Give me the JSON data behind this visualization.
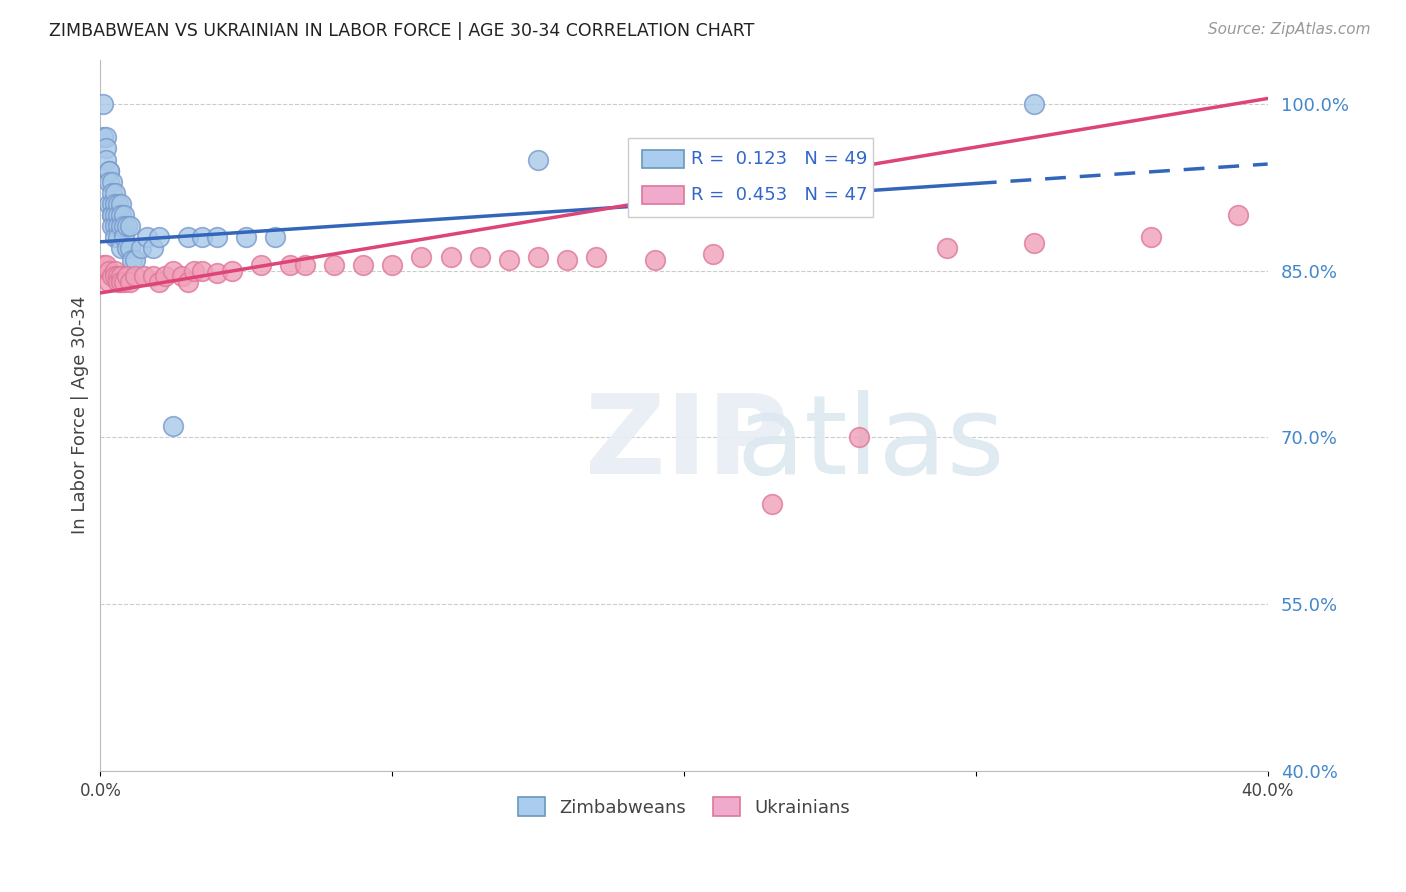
{
  "title": "ZIMBABWEAN VS UKRAINIAN IN LABOR FORCE | AGE 30-34 CORRELATION CHART",
  "source": "Source: ZipAtlas.com",
  "ylabel": "In Labor Force | Age 30-34",
  "xlim": [
    0.0,
    0.4
  ],
  "ylim": [
    0.4,
    1.04
  ],
  "yticks": [
    0.4,
    0.55,
    0.7,
    0.85,
    1.0
  ],
  "ytick_labels": [
    "40.0%",
    "55.0%",
    "70.0%",
    "85.0%",
    "100.0%"
  ],
  "xticks": [
    0.0,
    0.1,
    0.2,
    0.3,
    0.4
  ],
  "xtick_labels": [
    "0.0%",
    "",
    "",
    "",
    "40.0%"
  ],
  "legend_R_blue": "R =  0.123",
  "legend_N_blue": "N = 49",
  "legend_R_pink": "R =  0.453",
  "legend_N_pink": "N = 47",
  "blue_scatter_color": "#A8C8E8",
  "blue_edge_color": "#7799CC",
  "pink_scatter_color": "#F0A0B8",
  "pink_edge_color": "#DD7799",
  "blue_line_color": "#3366BB",
  "pink_line_color": "#DD4477",
  "grid_color": "#CCCCCC",
  "zim_x": [
    0.001,
    0.001,
    0.002,
    0.002,
    0.002,
    0.003,
    0.003,
    0.003,
    0.003,
    0.004,
    0.004,
    0.004,
    0.004,
    0.004,
    0.004,
    0.005,
    0.005,
    0.005,
    0.005,
    0.005,
    0.006,
    0.006,
    0.006,
    0.006,
    0.007,
    0.007,
    0.007,
    0.007,
    0.008,
    0.008,
    0.008,
    0.009,
    0.009,
    0.01,
    0.01,
    0.011,
    0.012,
    0.014,
    0.016,
    0.018,
    0.02,
    0.025,
    0.03,
    0.035,
    0.04,
    0.05,
    0.06,
    0.15,
    0.32
  ],
  "zim_y": [
    1.0,
    0.97,
    0.97,
    0.96,
    0.95,
    0.94,
    0.94,
    0.93,
    0.91,
    0.93,
    0.92,
    0.91,
    0.9,
    0.9,
    0.89,
    0.92,
    0.91,
    0.9,
    0.89,
    0.88,
    0.91,
    0.9,
    0.89,
    0.88,
    0.91,
    0.9,
    0.89,
    0.87,
    0.9,
    0.89,
    0.88,
    0.89,
    0.87,
    0.89,
    0.87,
    0.86,
    0.86,
    0.87,
    0.88,
    0.87,
    0.88,
    0.71,
    0.88,
    0.88,
    0.88,
    0.88,
    0.88,
    0.95,
    1.0
  ],
  "ukr_x": [
    0.001,
    0.002,
    0.003,
    0.003,
    0.004,
    0.005,
    0.005,
    0.006,
    0.006,
    0.007,
    0.007,
    0.008,
    0.009,
    0.01,
    0.012,
    0.015,
    0.018,
    0.02,
    0.022,
    0.025,
    0.028,
    0.03,
    0.032,
    0.035,
    0.04,
    0.045,
    0.055,
    0.065,
    0.07,
    0.08,
    0.09,
    0.1,
    0.11,
    0.12,
    0.13,
    0.14,
    0.15,
    0.16,
    0.17,
    0.19,
    0.21,
    0.23,
    0.26,
    0.29,
    0.32,
    0.36,
    0.39
  ],
  "ukr_y": [
    0.855,
    0.855,
    0.85,
    0.84,
    0.845,
    0.85,
    0.845,
    0.845,
    0.84,
    0.845,
    0.84,
    0.84,
    0.845,
    0.84,
    0.845,
    0.845,
    0.845,
    0.84,
    0.845,
    0.85,
    0.845,
    0.84,
    0.85,
    0.85,
    0.848,
    0.85,
    0.855,
    0.855,
    0.855,
    0.855,
    0.855,
    0.855,
    0.862,
    0.862,
    0.862,
    0.86,
    0.862,
    0.86,
    0.862,
    0.86,
    0.865,
    0.64,
    0.7,
    0.87,
    0.875,
    0.88,
    0.9
  ],
  "blue_trend_x0": 0.0,
  "blue_trend_y0": 0.876,
  "blue_trend_x1": 0.4,
  "blue_trend_y1": 0.946,
  "pink_trend_x0": 0.0,
  "pink_trend_y0": 0.83,
  "pink_trend_x1": 0.4,
  "pink_trend_y1": 1.005,
  "blue_dash_split": 0.3
}
